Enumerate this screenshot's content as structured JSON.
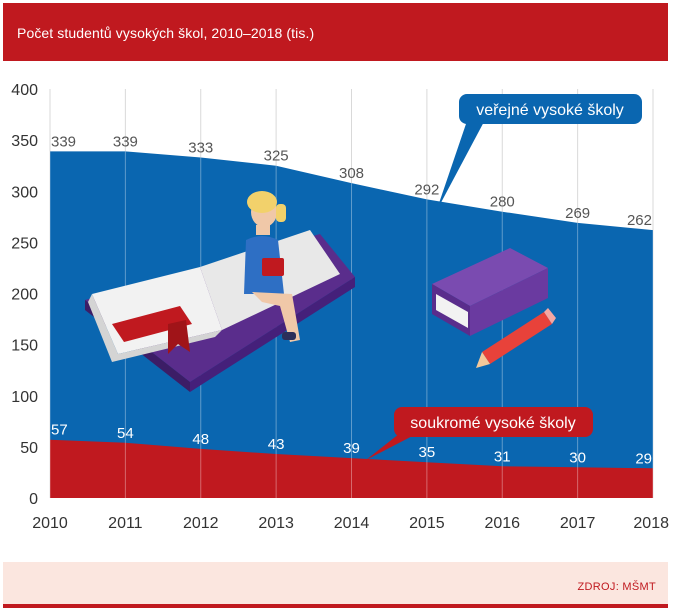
{
  "header": {
    "title": "Počet studentů vysokých škol, 2010–2018 (tis.)"
  },
  "footer": {
    "source": "ZDROJ: MŠMT"
  },
  "colors": {
    "header": "#c0191f",
    "public": "#0a66b0",
    "private": "#c0191f",
    "footer_bg": "#fbe6df"
  },
  "chart_data": {
    "type": "area",
    "x": [
      "2010",
      "2011",
      "2012",
      "2013",
      "2014",
      "2015",
      "2016",
      "2017",
      "2018"
    ],
    "ylim": [
      0,
      400
    ],
    "yticks": [
      0,
      50,
      100,
      150,
      200,
      250,
      300,
      350,
      400
    ],
    "grid": "vertical",
    "series": [
      {
        "name": "veřejné vysoké školy",
        "values": [
          339,
          339,
          333,
          325,
          308,
          292,
          280,
          269,
          262
        ],
        "color": "#0a66b0"
      },
      {
        "name": "soukromé vysoké školy",
        "values": [
          57,
          54,
          48,
          43,
          39,
          35,
          31,
          30,
          29
        ],
        "color": "#c0191f"
      }
    ]
  }
}
